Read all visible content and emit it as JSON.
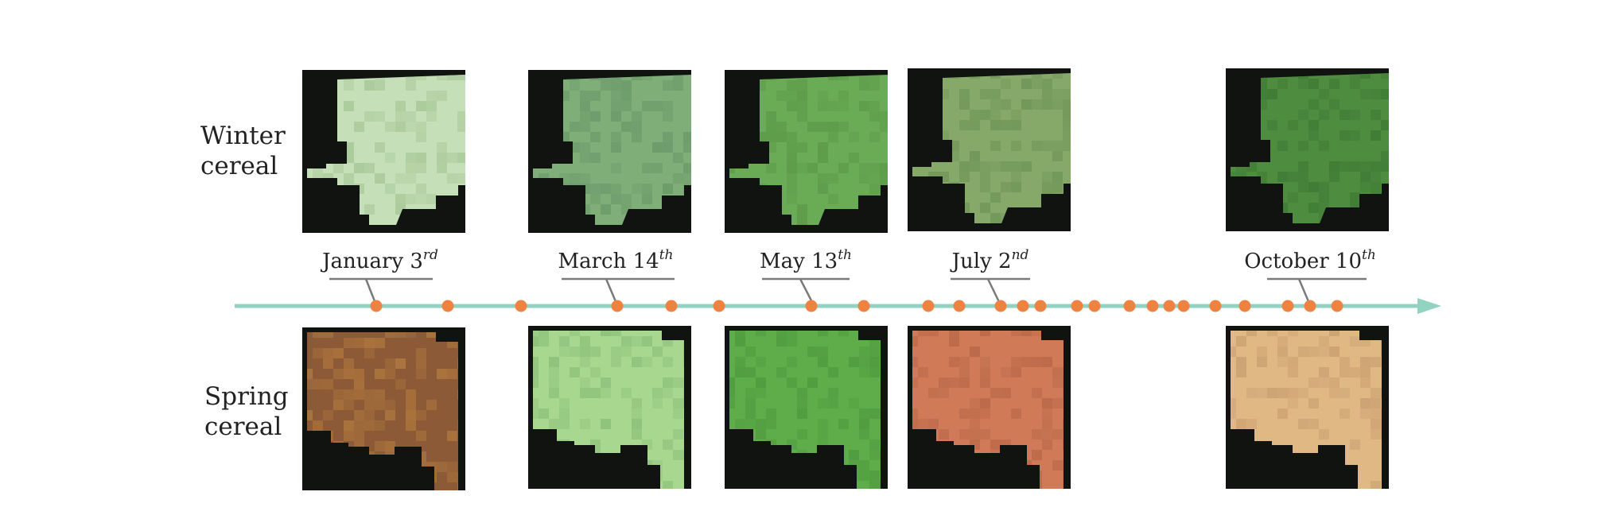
{
  "rows": {
    "winter": {
      "label_line1": "Winter",
      "label_line2": "cereal"
    },
    "spring": {
      "label_line1": "Spring",
      "label_line2": "cereal"
    }
  },
  "dates": [
    {
      "text": "January 3",
      "suffix": "rd"
    },
    {
      "text": "March 14",
      "suffix": "th"
    },
    {
      "text": "May 13",
      "suffix": "th"
    },
    {
      "text": "July 2",
      "suffix": "nd"
    },
    {
      "text": "October 10",
      "suffix": "th"
    }
  ],
  "colors": {
    "timeline": "#8fd3c0",
    "acquisition_dot": "#ee8240",
    "label_rule": "#7a7a7a",
    "tile_background": "#111311"
  },
  "tiles": {
    "winter": [
      {
        "base": "#c5e0b8",
        "shade": "#a8c898"
      },
      {
        "base": "#7fae78",
        "shade": "#6b9a6a"
      },
      {
        "base": "#6aab55",
        "shade": "#5c9a48"
      },
      {
        "base": "#86a868",
        "shade": "#6f9658"
      },
      {
        "base": "#4e8c40",
        "shade": "#3f7a34"
      }
    ],
    "spring": [
      {
        "base": "#8c5a36",
        "shade": "#b0783e"
      },
      {
        "base": "#a8d890",
        "shade": "#8cc07a"
      },
      {
        "base": "#5eac4a",
        "shade": "#4f9a3e"
      },
      {
        "base": "#d07a58",
        "shade": "#b86848"
      },
      {
        "base": "#e0b884",
        "shade": "#c9a070"
      }
    ]
  }
}
